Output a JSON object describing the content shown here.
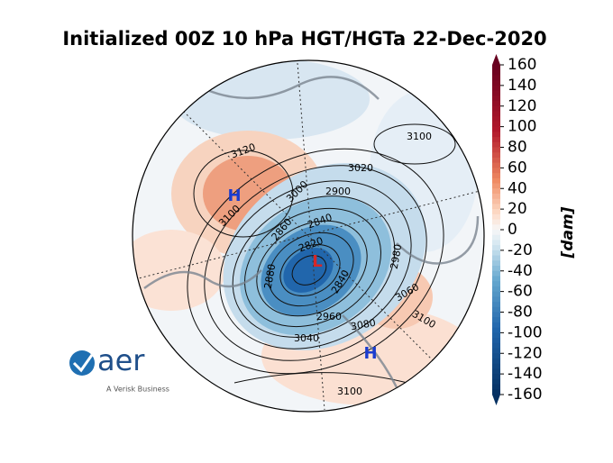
{
  "title": "Initialized 00Z 10 hPa HGT/HGTa 22-Dec-2020",
  "colorbar": {
    "label": "[dam]",
    "lim": [
      -160,
      160
    ],
    "ticks": [
      -160,
      -140,
      -120,
      -100,
      -80,
      -60,
      -40,
      -20,
      0,
      20,
      40,
      60,
      80,
      100,
      120,
      140,
      160
    ]
  },
  "contour_labels": [
    3120,
    3100,
    3020,
    2900,
    3100,
    3000,
    2840,
    2860,
    2820,
    2980,
    2880,
    2840,
    2960,
    3060,
    3100,
    3080,
    3040,
    3100
  ],
  "centers": [
    "H",
    "L",
    "H"
  ],
  "logo": {
    "brand": "aer",
    "tagline": "A Verisk Business"
  }
}
